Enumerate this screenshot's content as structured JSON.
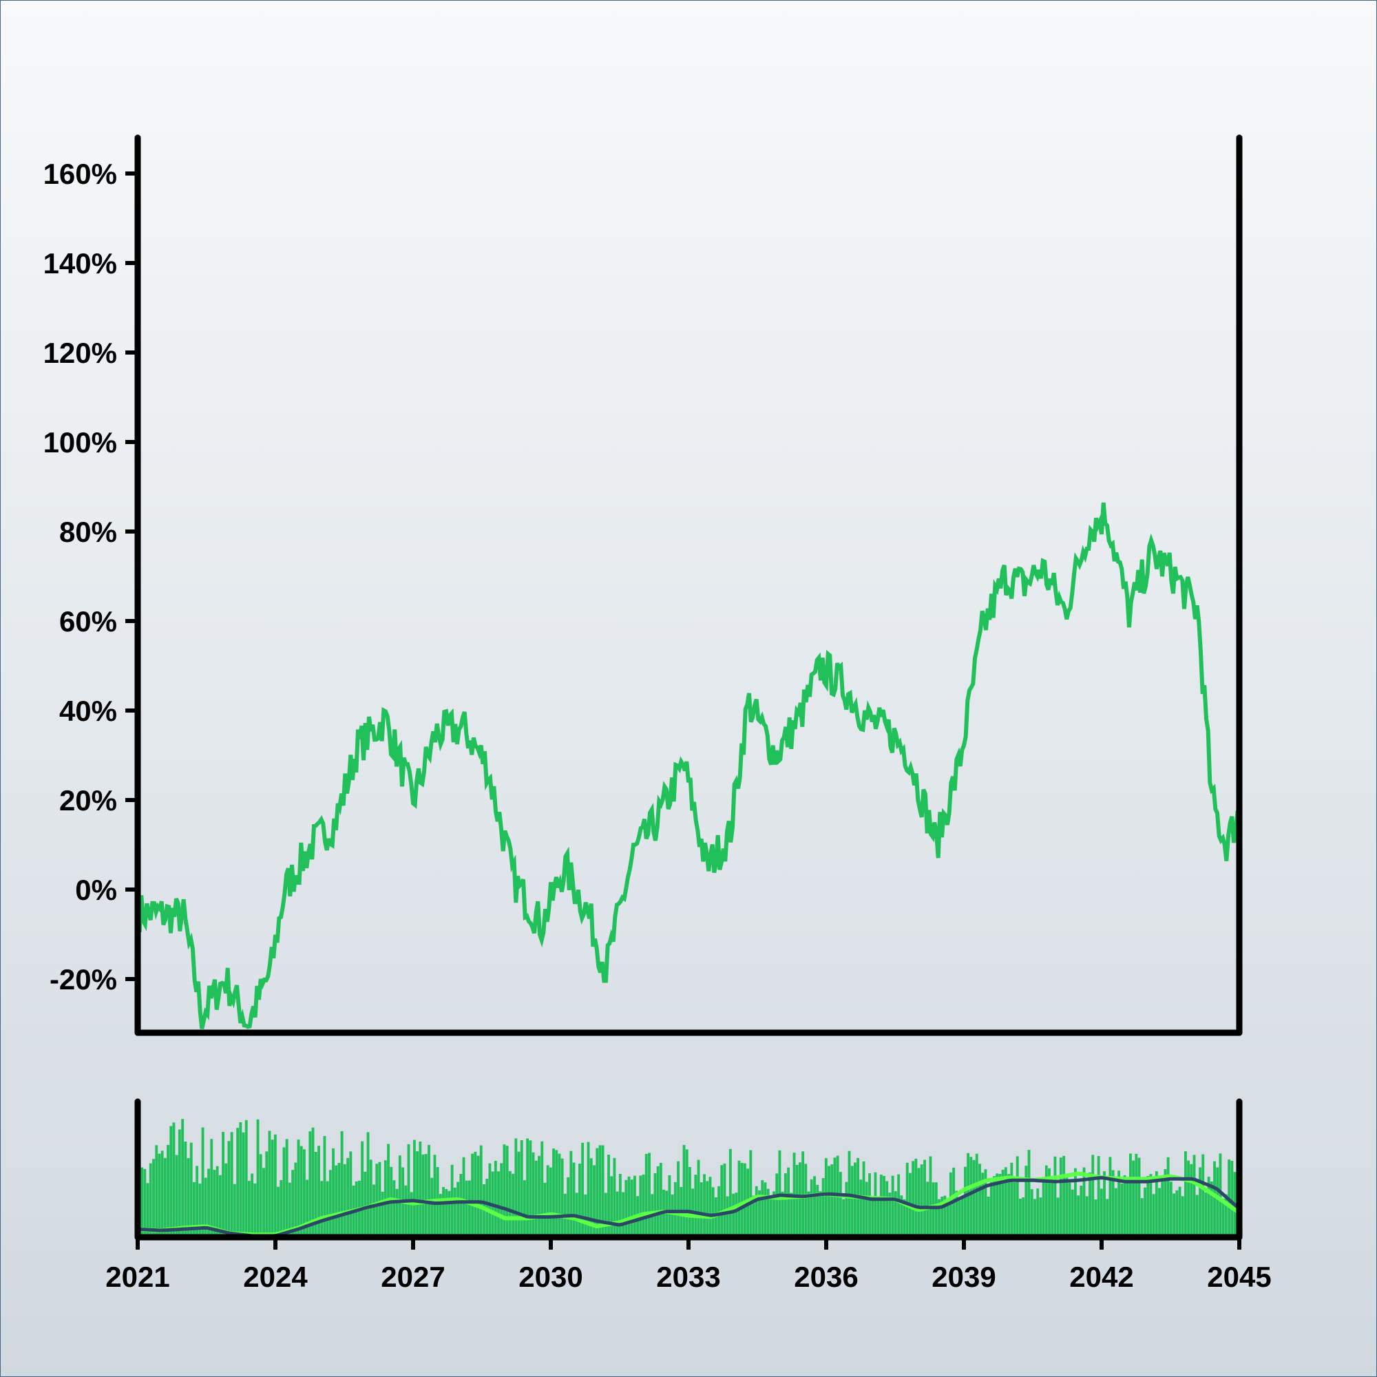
{
  "chart_data": [
    {
      "type": "line",
      "panel": "main",
      "title": "",
      "xlabel": "",
      "ylabel": "",
      "x_range": [
        2021,
        2045
      ],
      "ylim": [
        -32,
        168
      ],
      "y_ticks": [
        -20,
        0,
        20,
        40,
        60,
        80,
        100,
        120,
        140,
        160
      ],
      "y_tick_labels": [
        "-20%",
        "0%",
        "20%",
        "40%",
        "60%",
        "80%",
        "100%",
        "120%",
        "140%",
        "160%"
      ],
      "grid": false,
      "colors": {
        "line": "#22c05a",
        "axis": "#000000"
      },
      "series": [
        {
          "x": [
            2021.0,
            2022.0,
            2022.4,
            2022.9,
            2023.4,
            2023.9,
            2024.2,
            2024.8,
            2025.3,
            2025.8,
            2026.4,
            2027.0,
            2027.5,
            2028.1,
            2028.6,
            2029.2,
            2029.8,
            2030.3,
            2030.8,
            2031.2,
            2031.8,
            2032.3,
            2032.9,
            2033.4,
            2033.9,
            2034.3,
            2034.9,
            2035.4,
            2035.9,
            2036.4,
            2036.9,
            2037.4,
            2037.8,
            2038.4,
            2038.9,
            2039.4,
            2039.9,
            2040.3,
            2040.7,
            2041.2,
            2041.7,
            2042.1,
            2042.6,
            2043.1,
            2043.6,
            2044.1,
            2044.4,
            2044.7,
            2045.0
          ],
          "values": [
            -5,
            -6,
            -28,
            -20,
            -30,
            -18,
            0,
            10,
            15,
            32,
            38,
            20,
            35,
            36,
            28,
            2,
            -8,
            5,
            -5,
            -18,
            8,
            15,
            28,
            5,
            12,
            42,
            30,
            38,
            50,
            45,
            38,
            35,
            30,
            10,
            28,
            58,
            70,
            68,
            72,
            62,
            80,
            84,
            62,
            75,
            70,
            62,
            20,
            10,
            17
          ]
        }
      ]
    },
    {
      "type": "bar",
      "panel": "volume",
      "title": "",
      "xlabel": "",
      "ylabel": "",
      "x_range": [
        2021,
        2045
      ],
      "ylim": [
        0,
        100
      ],
      "x_ticks": [
        2021,
        2024,
        2027,
        2030,
        2033,
        2036,
        2039,
        2042,
        2045
      ],
      "x_tick_labels": [
        "2021",
        "2024",
        "2027",
        "2030",
        "2033",
        "2036",
        "2039",
        "2042",
        "2045"
      ],
      "grid": false,
      "colors": {
        "bars": "#22c05a",
        "fast_ma": "#5aff46",
        "slow_ma": "#2c4766"
      },
      "series": [
        {
          "x": [
            2021.0,
            2022.0,
            2023.0,
            2024.0,
            2025.0,
            2026.0,
            2027.0,
            2028.0,
            2029.0,
            2030.0,
            2031.0,
            2032.0,
            2033.0,
            2034.0,
            2035.0,
            2036.0,
            2037.0,
            2038.0,
            2039.0,
            2040.0,
            2041.0,
            2042.0,
            2043.0,
            2044.0,
            2045.0
          ],
          "values": [
            80,
            84,
            86,
            82,
            76,
            74,
            72,
            70,
            70,
            72,
            68,
            66,
            66,
            64,
            62,
            63,
            61,
            60,
            60,
            62,
            62,
            60,
            60,
            64,
            58
          ]
        },
        {
          "x": [
            2021.0,
            2021.5,
            2022.0,
            2022.5,
            2023.0,
            2023.5,
            2024.0,
            2024.5,
            2025.0,
            2025.5,
            2026.0,
            2026.5,
            2027.0,
            2027.5,
            2028.0,
            2028.5,
            2029.0,
            2029.5,
            2030.0,
            2030.5,
            2031.0,
            2031.5,
            2032.0,
            2032.5,
            2033.0,
            2033.5,
            2034.0,
            2034.5,
            2035.0,
            2035.5,
            2036.0,
            2036.5,
            2037.0,
            2037.5,
            2038.0,
            2038.5,
            2039.0,
            2039.5,
            2040.0,
            2040.5,
            2041.0,
            2041.5,
            2042.0,
            2042.5,
            2043.0,
            2043.5,
            2044.0,
            2044.5,
            2045.0
          ],
          "values": [
            6,
            5,
            7,
            8,
            3,
            2,
            2,
            7,
            14,
            18,
            22,
            28,
            25,
            27,
            28,
            22,
            14,
            14,
            17,
            14,
            8,
            11,
            17,
            19,
            16,
            15,
            22,
            30,
            29,
            30,
            32,
            30,
            29,
            28,
            20,
            24,
            35,
            42,
            44,
            42,
            44,
            47,
            44,
            43,
            43,
            45,
            41,
            30,
            18
          ]
        },
        {
          "x": [
            2021.0,
            2021.5,
            2022.0,
            2022.5,
            2023.0,
            2023.5,
            2024.0,
            2024.5,
            2025.0,
            2025.5,
            2026.0,
            2026.5,
            2027.0,
            2027.5,
            2028.0,
            2028.5,
            2029.0,
            2029.5,
            2030.0,
            2030.5,
            2031.0,
            2031.5,
            2032.0,
            2032.5,
            2033.0,
            2033.5,
            2034.0,
            2034.5,
            2035.0,
            2035.5,
            2036.0,
            2036.5,
            2037.0,
            2037.5,
            2038.0,
            2038.5,
            2039.0,
            2039.5,
            2040.0,
            2040.5,
            2041.0,
            2041.5,
            2042.0,
            2042.5,
            2043.0,
            2043.5,
            2044.0,
            2044.5,
            2045.0
          ],
          "values": [
            6,
            5,
            6,
            7,
            3,
            1,
            1,
            6,
            12,
            17,
            22,
            26,
            27,
            25,
            26,
            26,
            21,
            15,
            15,
            16,
            12,
            9,
            14,
            19,
            19,
            16,
            19,
            28,
            31,
            30,
            32,
            31,
            28,
            28,
            22,
            22,
            30,
            38,
            42,
            42,
            41,
            42,
            44,
            41,
            41,
            43,
            43,
            36,
            21
          ]
        }
      ]
    }
  ]
}
